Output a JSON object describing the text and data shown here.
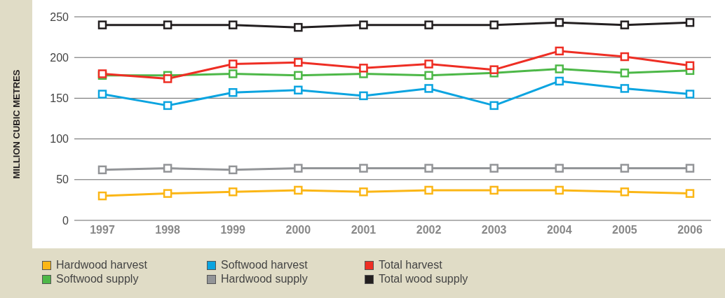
{
  "chart_data": {
    "type": "line",
    "ylabel": "MILLION CUBIC METRES",
    "categories": [
      "1997",
      "1998",
      "1999",
      "2000",
      "2001",
      "2002",
      "2003",
      "2004",
      "2005",
      "2006"
    ],
    "series": [
      {
        "name": "Hardwood harvest",
        "color": "#fbb616",
        "values": [
          30,
          33,
          35,
          37,
          35,
          37,
          37,
          37,
          35,
          33
        ]
      },
      {
        "name": "Softwood harvest",
        "color": "#0ba4e0",
        "values": [
          155,
          141,
          157,
          160,
          153,
          162,
          141,
          171,
          162,
          155
        ]
      },
      {
        "name": "Total harvest",
        "color": "#ee2e24",
        "values": [
          180,
          174,
          192,
          194,
          187,
          192,
          185,
          208,
          201,
          190
        ]
      },
      {
        "name": "Softwood supply",
        "color": "#4db848",
        "values": [
          178,
          178,
          180,
          178,
          180,
          178,
          181,
          186,
          181,
          184
        ]
      },
      {
        "name": "Hardwood supply",
        "color": "#939598",
        "values": [
          62,
          64,
          62,
          64,
          64,
          64,
          64,
          64,
          64,
          64
        ]
      },
      {
        "name": "Total wood supply",
        "color": "#231f20",
        "values": [
          240,
          240,
          240,
          237,
          240,
          240,
          240,
          243,
          240,
          243
        ]
      }
    ],
    "ylim": [
      0,
      250
    ],
    "yticks": [
      0,
      50,
      100,
      150,
      200,
      250
    ],
    "grid": "y",
    "legend": "bottom",
    "marker": "square",
    "line_style": "solid"
  }
}
